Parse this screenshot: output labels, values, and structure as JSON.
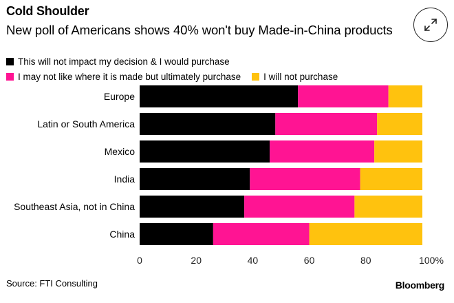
{
  "header": {
    "title": "Cold Shoulder",
    "subtitle": "New poll of Americans shows 40% won't buy Made-in-China products"
  },
  "expand_icon": "expand-arrows-icon",
  "colors": {
    "series": [
      "#000000",
      "#ff1493",
      "#ffc20e"
    ],
    "tick_text": "#222222"
  },
  "chart_data": {
    "type": "bar",
    "orientation": "horizontal",
    "stacked": true,
    "categories": [
      "Europe",
      "Latin or South America",
      "Mexico",
      "India",
      "Southeast Asia, not in China",
      "China"
    ],
    "series": [
      {
        "name": "This will not impact my decision & I would purchase",
        "values": [
          56,
          48,
          46,
          39,
          37,
          26
        ]
      },
      {
        "name": "I may not like where it is made but ultimately purchase",
        "values": [
          32,
          36,
          37,
          39,
          39,
          34
        ]
      },
      {
        "name": "I will not purchase",
        "values": [
          12,
          16,
          17,
          22,
          24,
          40
        ]
      }
    ],
    "xlim": [
      0,
      100
    ],
    "x_ticks": [
      "0",
      "20",
      "40",
      "60",
      "80",
      "100%"
    ],
    "legend_position": "top-left",
    "grid": false
  },
  "footer": {
    "source": "Source: FTI Consulting",
    "brand": "Bloomberg"
  }
}
